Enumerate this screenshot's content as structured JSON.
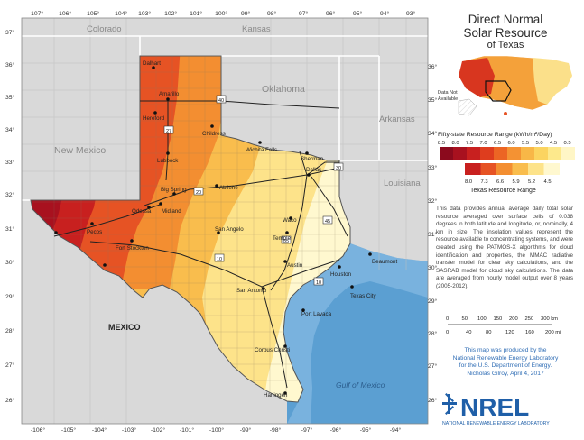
{
  "title": {
    "line1": "Direct Normal",
    "line2": "Solar Resource",
    "line3": "of Texas"
  },
  "inset": {
    "label_line1": "Data Not",
    "label_line2": "Available"
  },
  "legend": {
    "fifty_state_title": "Fifty-state Resource Range (kWh/m²/Day)",
    "fifty_state_values": [
      "8.5",
      "8.0",
      "7.5",
      "7.0",
      "6.5",
      "6.0",
      "5.5",
      "5.0",
      "4.5",
      "0.5"
    ],
    "texas_values": [
      "8.0",
      "7.3",
      "6.6",
      "5.9",
      "5.2",
      "4.5"
    ],
    "texas_title": "Texas Resource Range",
    "fifty_colors": [
      "#8b0a1d",
      "#a8111f",
      "#c8201f",
      "#de3d1e",
      "#ec6524",
      "#f49233",
      "#f8b747",
      "#fbd460",
      "#fde98c",
      "#fff6c6"
    ],
    "texas_colors": [
      "#c8201f",
      "#e65324",
      "#f38e31",
      "#f9bd4d",
      "#fde38a",
      "#fff8cf"
    ]
  },
  "description": "This data provides annual average daily total solar resource averaged over surface cells of 0.038 degrees in both latitude and longitude, or, nominally, 4 km in size. The insolation values represent the resource available to concentrating systems, and were created using the PATMOS-X algorithms for cloud identification and properties, the MMAC radiative transfer model for clear sky calculations, and the SASRAB model for cloud sky calculations. The data are averaged from hourly model output over 8 years (2005-2012).",
  "scale": {
    "km": [
      "0",
      "50",
      "100",
      "150",
      "200",
      "250",
      "300 km"
    ],
    "mi": [
      "0",
      "40",
      "80",
      "120",
      "160",
      "200 mi"
    ]
  },
  "credit": {
    "line1": "This map was produced by the",
    "line2": "National Renewable Energy Laboratory",
    "line3": "for the U.S. Department of Energy.",
    "line4": "Nicholas Gilroy,  April 4, 2017"
  },
  "nrel": {
    "logo": "NREL",
    "subtitle": "NATIONAL RENEWABLE ENERGY LABORATORY"
  },
  "longitudes": [
    "-107°",
    "-106°",
    "-105°",
    "-104°",
    "-103°",
    "-102°",
    "-101°",
    "-100°",
    "-99°",
    "-98°",
    "-97°",
    "-96°",
    "-95°",
    "-94°",
    "-93°"
  ],
  "latitudes": [
    "37°",
    "36°",
    "35°",
    "34°",
    "33°",
    "32°",
    "31°",
    "30°",
    "29°",
    "28°",
    "27°",
    "26°"
  ],
  "states": [
    "Colorado",
    "Kansas",
    "Oklahoma",
    "New Mexico",
    "Arkansas",
    "Louisiana",
    "MEXICO"
  ],
  "water": [
    "Gulf of Mexico"
  ],
  "cities": [
    "Dalhart",
    "Amarillo",
    "Hereford",
    "Childress",
    "Wichita Falls",
    "Sherman",
    "Lubbock",
    "Dallas",
    "Big Spring",
    "Abilene",
    "Odessa",
    "Midland",
    "Pecos",
    "Fort Stockton",
    "San Angelo",
    "Waco",
    "Temple",
    "Austin",
    "Houston",
    "Beaumont",
    "San Antonio",
    "Texas City",
    "Port Lavaca",
    "Corpus Christi",
    "Harlingen"
  ],
  "highways": [
    "40",
    "27",
    "20",
    "30",
    "45",
    "35",
    "10",
    "10"
  ]
}
